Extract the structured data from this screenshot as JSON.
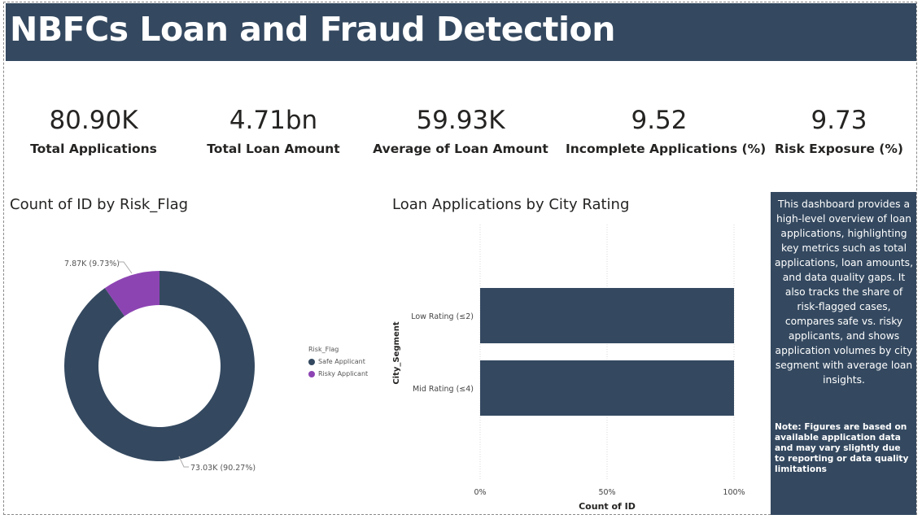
{
  "header": {
    "title": "NBFCs Loan and Fraud Detection"
  },
  "kpis": [
    {
      "value": "80.90K",
      "label": "Total Applications"
    },
    {
      "value": "4.71bn",
      "label": "Total Loan Amount"
    },
    {
      "value": "59.93K",
      "label": "Average of Loan Amount"
    },
    {
      "value": "9.52",
      "label": "Incomplete Applications (%)"
    },
    {
      "value": "9.73",
      "label": "Risk Exposure (%)"
    }
  ],
  "donut": {
    "title": "Count of ID by Risk_Flag",
    "legend_title": "Risk_Flag",
    "legend_position": "right",
    "colors": {
      "safe": "#344960",
      "risky": "#8d44b3"
    },
    "chart_data": {
      "type": "pie",
      "slices": [
        {
          "name": "Safe Applicant",
          "value": 73030,
          "label": "73.03K (90.27%)",
          "color": "#344960"
        },
        {
          "name": "Risky Applicant",
          "value": 7870,
          "label": "7.87K (9.73%)",
          "color": "#8d44b3"
        }
      ]
    }
  },
  "bar": {
    "title": "Loan Applications by City Rating",
    "chart_data": {
      "type": "bar",
      "orientation": "horizontal",
      "stacked": "100%",
      "categories": [
        "Low Rating (≤2)",
        "Mid Rating (≤4)"
      ],
      "values": [
        100,
        100
      ],
      "xlabel": "Count of ID",
      "ylabel": "City_Segment",
      "xlim": [
        0,
        100
      ],
      "xticks": [
        "0%",
        "50%",
        "100%"
      ],
      "grid": true,
      "color": "#344960"
    }
  },
  "info": {
    "description": "This dashboard provides a high-level overview of loan applications, highlighting key metrics such as total applications, loan amounts, and data quality gaps. It also tracks the share of risk-flagged cases, compares safe vs. risky applicants, and shows application volumes by city segment with average loan insights.",
    "note": "Note: Figures are based on available application data and may vary slightly due to reporting or data quality limitations"
  }
}
